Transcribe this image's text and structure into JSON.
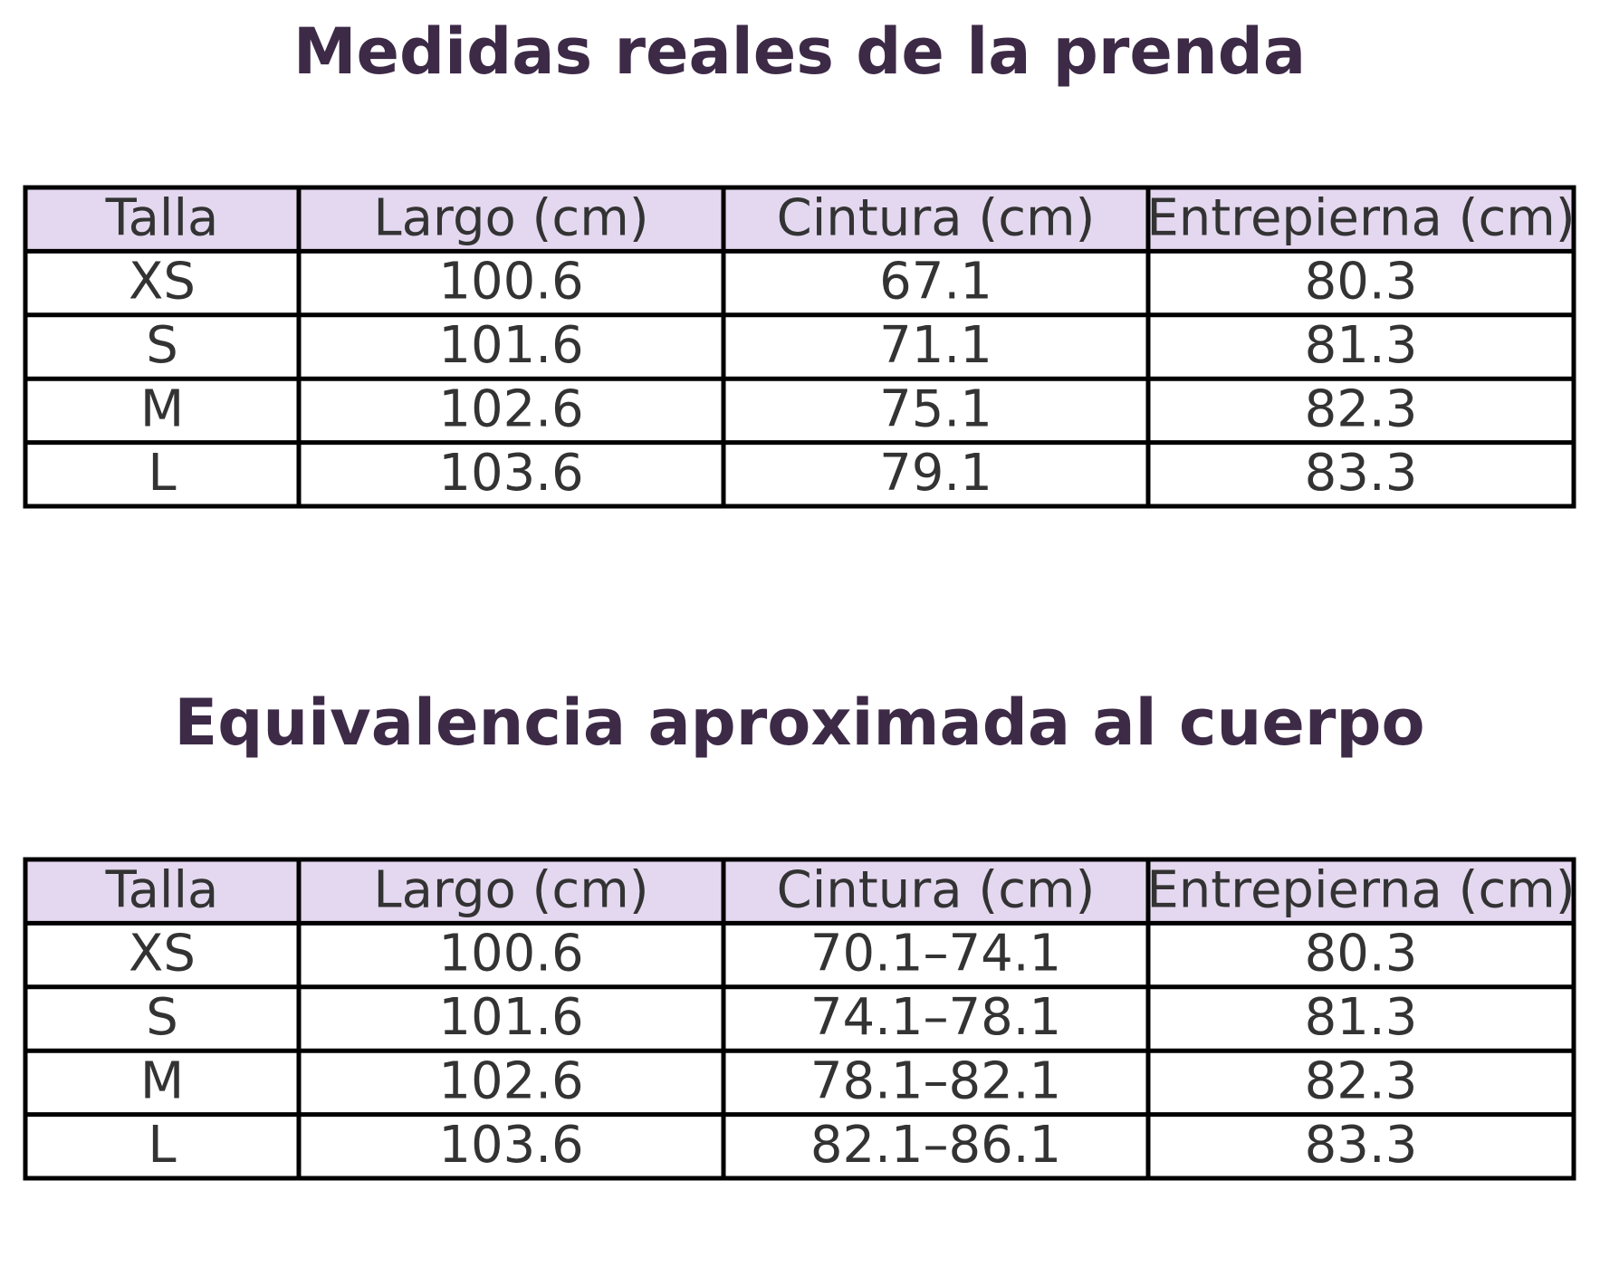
{
  "sections": [
    {
      "title": "Medidas reales de la prenda",
      "table": {
        "header": [
          "Talla",
          "Largo (cm)",
          "Cintura (cm)",
          "Entrepierna (cm)"
        ],
        "rows": [
          [
            "XS",
            "100.6",
            "67.1",
            "80.3"
          ],
          [
            "S",
            "101.6",
            "71.1",
            "81.3"
          ],
          [
            "M",
            "102.6",
            "75.1",
            "82.3"
          ],
          [
            "L",
            "103.6",
            "79.1",
            "83.3"
          ]
        ]
      }
    },
    {
      "title": "Equivalencia aproximada al cuerpo",
      "table": {
        "header": [
          "Talla",
          "Largo (cm)",
          "Cintura (cm)",
          "Entrepierna (cm)"
        ],
        "rows": [
          [
            "XS",
            "100.6",
            "70.1–74.1",
            "80.3"
          ],
          [
            "S",
            "101.6",
            "74.1–78.1",
            "81.3"
          ],
          [
            "M",
            "102.6",
            "78.1–82.1",
            "82.3"
          ],
          [
            "L",
            "103.6",
            "82.1–86.1",
            "83.3"
          ]
        ]
      }
    }
  ]
}
